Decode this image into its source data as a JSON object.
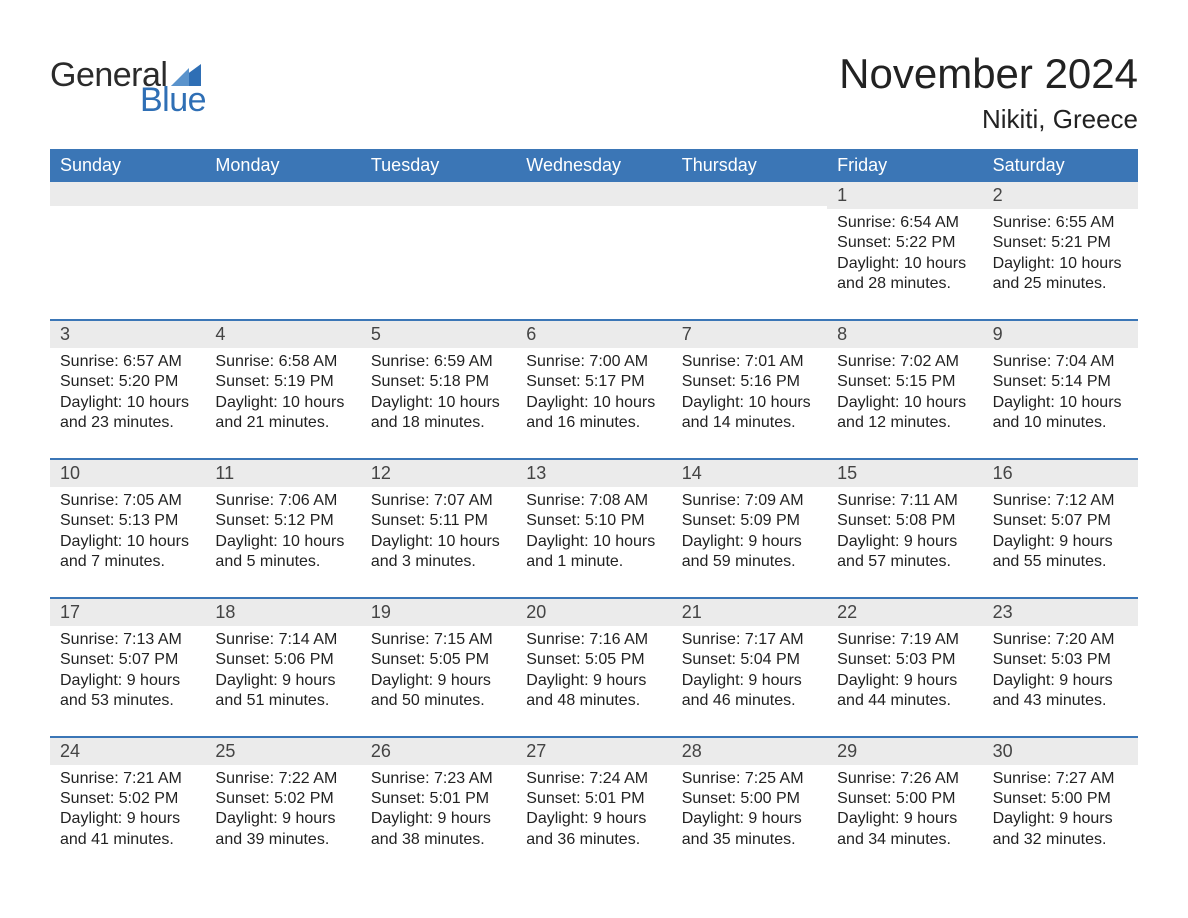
{
  "brand": {
    "text_general": "General",
    "text_blue": "Blue",
    "sail_color": "#2f6fb5",
    "text_dark": "#2b2b2b"
  },
  "title": "November 2024",
  "location": "Nikiti, Greece",
  "colors": {
    "header_bg": "#3b76b6",
    "header_text": "#ffffff",
    "daynum_bg": "#ebebeb",
    "rule": "#3b76b6",
    "page_bg": "#ffffff",
    "body_text": "#222222"
  },
  "days_of_week": [
    "Sunday",
    "Monday",
    "Tuesday",
    "Wednesday",
    "Thursday",
    "Friday",
    "Saturday"
  ],
  "weeks": [
    [
      {
        "n": "",
        "sunrise": "",
        "sunset": "",
        "daylight": ""
      },
      {
        "n": "",
        "sunrise": "",
        "sunset": "",
        "daylight": ""
      },
      {
        "n": "",
        "sunrise": "",
        "sunset": "",
        "daylight": ""
      },
      {
        "n": "",
        "sunrise": "",
        "sunset": "",
        "daylight": ""
      },
      {
        "n": "",
        "sunrise": "",
        "sunset": "",
        "daylight": ""
      },
      {
        "n": "1",
        "sunrise": "Sunrise: 6:54 AM",
        "sunset": "Sunset: 5:22 PM",
        "daylight": "Daylight: 10 hours and 28 minutes."
      },
      {
        "n": "2",
        "sunrise": "Sunrise: 6:55 AM",
        "sunset": "Sunset: 5:21 PM",
        "daylight": "Daylight: 10 hours and 25 minutes."
      }
    ],
    [
      {
        "n": "3",
        "sunrise": "Sunrise: 6:57 AM",
        "sunset": "Sunset: 5:20 PM",
        "daylight": "Daylight: 10 hours and 23 minutes."
      },
      {
        "n": "4",
        "sunrise": "Sunrise: 6:58 AM",
        "sunset": "Sunset: 5:19 PM",
        "daylight": "Daylight: 10 hours and 21 minutes."
      },
      {
        "n": "5",
        "sunrise": "Sunrise: 6:59 AM",
        "sunset": "Sunset: 5:18 PM",
        "daylight": "Daylight: 10 hours and 18 minutes."
      },
      {
        "n": "6",
        "sunrise": "Sunrise: 7:00 AM",
        "sunset": "Sunset: 5:17 PM",
        "daylight": "Daylight: 10 hours and 16 minutes."
      },
      {
        "n": "7",
        "sunrise": "Sunrise: 7:01 AM",
        "sunset": "Sunset: 5:16 PM",
        "daylight": "Daylight: 10 hours and 14 minutes."
      },
      {
        "n": "8",
        "sunrise": "Sunrise: 7:02 AM",
        "sunset": "Sunset: 5:15 PM",
        "daylight": "Daylight: 10 hours and 12 minutes."
      },
      {
        "n": "9",
        "sunrise": "Sunrise: 7:04 AM",
        "sunset": "Sunset: 5:14 PM",
        "daylight": "Daylight: 10 hours and 10 minutes."
      }
    ],
    [
      {
        "n": "10",
        "sunrise": "Sunrise: 7:05 AM",
        "sunset": "Sunset: 5:13 PM",
        "daylight": "Daylight: 10 hours and 7 minutes."
      },
      {
        "n": "11",
        "sunrise": "Sunrise: 7:06 AM",
        "sunset": "Sunset: 5:12 PM",
        "daylight": "Daylight: 10 hours and 5 minutes."
      },
      {
        "n": "12",
        "sunrise": "Sunrise: 7:07 AM",
        "sunset": "Sunset: 5:11 PM",
        "daylight": "Daylight: 10 hours and 3 minutes."
      },
      {
        "n": "13",
        "sunrise": "Sunrise: 7:08 AM",
        "sunset": "Sunset: 5:10 PM",
        "daylight": "Daylight: 10 hours and 1 minute."
      },
      {
        "n": "14",
        "sunrise": "Sunrise: 7:09 AM",
        "sunset": "Sunset: 5:09 PM",
        "daylight": "Daylight: 9 hours and 59 minutes."
      },
      {
        "n": "15",
        "sunrise": "Sunrise: 7:11 AM",
        "sunset": "Sunset: 5:08 PM",
        "daylight": "Daylight: 9 hours and 57 minutes."
      },
      {
        "n": "16",
        "sunrise": "Sunrise: 7:12 AM",
        "sunset": "Sunset: 5:07 PM",
        "daylight": "Daylight: 9 hours and 55 minutes."
      }
    ],
    [
      {
        "n": "17",
        "sunrise": "Sunrise: 7:13 AM",
        "sunset": "Sunset: 5:07 PM",
        "daylight": "Daylight: 9 hours and 53 minutes."
      },
      {
        "n": "18",
        "sunrise": "Sunrise: 7:14 AM",
        "sunset": "Sunset: 5:06 PM",
        "daylight": "Daylight: 9 hours and 51 minutes."
      },
      {
        "n": "19",
        "sunrise": "Sunrise: 7:15 AM",
        "sunset": "Sunset: 5:05 PM",
        "daylight": "Daylight: 9 hours and 50 minutes."
      },
      {
        "n": "20",
        "sunrise": "Sunrise: 7:16 AM",
        "sunset": "Sunset: 5:05 PM",
        "daylight": "Daylight: 9 hours and 48 minutes."
      },
      {
        "n": "21",
        "sunrise": "Sunrise: 7:17 AM",
        "sunset": "Sunset: 5:04 PM",
        "daylight": "Daylight: 9 hours and 46 minutes."
      },
      {
        "n": "22",
        "sunrise": "Sunrise: 7:19 AM",
        "sunset": "Sunset: 5:03 PM",
        "daylight": "Daylight: 9 hours and 44 minutes."
      },
      {
        "n": "23",
        "sunrise": "Sunrise: 7:20 AM",
        "sunset": "Sunset: 5:03 PM",
        "daylight": "Daylight: 9 hours and 43 minutes."
      }
    ],
    [
      {
        "n": "24",
        "sunrise": "Sunrise: 7:21 AM",
        "sunset": "Sunset: 5:02 PM",
        "daylight": "Daylight: 9 hours and 41 minutes."
      },
      {
        "n": "25",
        "sunrise": "Sunrise: 7:22 AM",
        "sunset": "Sunset: 5:02 PM",
        "daylight": "Daylight: 9 hours and 39 minutes."
      },
      {
        "n": "26",
        "sunrise": "Sunrise: 7:23 AM",
        "sunset": "Sunset: 5:01 PM",
        "daylight": "Daylight: 9 hours and 38 minutes."
      },
      {
        "n": "27",
        "sunrise": "Sunrise: 7:24 AM",
        "sunset": "Sunset: 5:01 PM",
        "daylight": "Daylight: 9 hours and 36 minutes."
      },
      {
        "n": "28",
        "sunrise": "Sunrise: 7:25 AM",
        "sunset": "Sunset: 5:00 PM",
        "daylight": "Daylight: 9 hours and 35 minutes."
      },
      {
        "n": "29",
        "sunrise": "Sunrise: 7:26 AM",
        "sunset": "Sunset: 5:00 PM",
        "daylight": "Daylight: 9 hours and 34 minutes."
      },
      {
        "n": "30",
        "sunrise": "Sunrise: 7:27 AM",
        "sunset": "Sunset: 5:00 PM",
        "daylight": "Daylight: 9 hours and 32 minutes."
      }
    ]
  ]
}
